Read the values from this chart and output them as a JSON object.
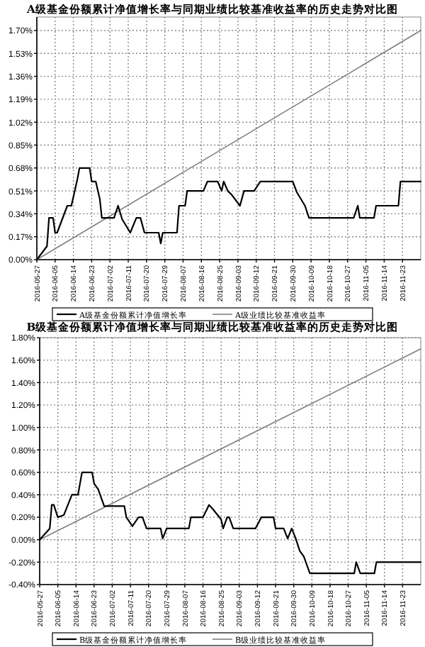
{
  "chart_data": [
    {
      "type": "line",
      "title": "A级基金份额累计净值增长率与同期业绩比较基准收益率的历史走势对比图",
      "legend": "bottom",
      "grid": true,
      "marker": "none",
      "line_style": "solid",
      "xlim": [
        "2016-05-27",
        "2016-12-02"
      ],
      "xticks": [
        "2016-05-27",
        "2016-06-05",
        "2016-06-14",
        "2016-06-23",
        "2016-07-02",
        "2016-07-11",
        "2016-07-20",
        "2016-07-29",
        "2016-08-07",
        "2016-08-16",
        "2016-08-25",
        "2016-09-03",
        "2016-09-12",
        "2016-09-21",
        "2016-09-30",
        "2016-10-09",
        "2016-10-18",
        "2016-10-27",
        "2016-11-05",
        "2016-11-14",
        "2016-11-23"
      ],
      "ylim": [
        0,
        1.8
      ],
      "yticks": [
        {
          "value": 0,
          "label": "0.00%"
        },
        {
          "value": 0.17,
          "label": "0.17%"
        },
        {
          "value": 0.34,
          "label": "0.34%"
        },
        {
          "value": 0.51,
          "label": "0.51%"
        },
        {
          "value": 0.68,
          "label": "0.68%"
        },
        {
          "value": 0.85,
          "label": "0.85%"
        },
        {
          "value": 1.02,
          "label": "1.02%"
        },
        {
          "value": 1.19,
          "label": "1.19%"
        },
        {
          "value": 1.36,
          "label": "1.36%"
        },
        {
          "value": 1.53,
          "label": "1.53%"
        },
        {
          "value": 1.7,
          "label": "1.70%"
        }
      ],
      "series": [
        {
          "name": "A级基金份额累计净值增长率",
          "color": "#000000",
          "x": [
            "2016-05-27",
            "2016-06-01",
            "2016-06-02",
            "2016-06-04",
            "2016-06-05",
            "2016-06-06",
            "2016-06-11",
            "2016-06-13",
            "2016-06-16",
            "2016-06-17",
            "2016-06-22",
            "2016-06-23",
            "2016-06-25",
            "2016-06-27",
            "2016-06-28",
            "2016-07-04",
            "2016-07-06",
            "2016-07-08",
            "2016-07-12",
            "2016-07-15",
            "2016-07-17",
            "2016-07-19",
            "2016-07-26",
            "2016-07-27",
            "2016-07-28",
            "2016-08-04",
            "2016-08-05",
            "2016-08-08",
            "2016-08-09",
            "2016-08-17",
            "2016-08-19",
            "2016-08-24",
            "2016-08-26",
            "2016-08-27",
            "2016-08-29",
            "2016-08-31",
            "2016-09-04",
            "2016-09-06",
            "2016-09-11",
            "2016-09-14",
            "2016-09-30",
            "2016-10-02",
            "2016-10-06",
            "2016-10-08",
            "2016-10-30",
            "2016-11-01",
            "2016-11-02",
            "2016-11-09",
            "2016-11-10",
            "2016-11-21",
            "2016-11-22",
            "2016-12-02"
          ],
          "values": [
            0,
            0.1,
            0.31,
            0.31,
            0.2,
            0.2,
            0.4,
            0.4,
            0.6,
            0.68,
            0.68,
            0.58,
            0.58,
            0.45,
            0.31,
            0.31,
            0.4,
            0.3,
            0.2,
            0.31,
            0.31,
            0.2,
            0.2,
            0.12,
            0.2,
            0.2,
            0.4,
            0.4,
            0.51,
            0.51,
            0.58,
            0.58,
            0.51,
            0.58,
            0.51,
            0.48,
            0.4,
            0.51,
            0.51,
            0.58,
            0.58,
            0.5,
            0.4,
            0.31,
            0.31,
            0.4,
            0.31,
            0.31,
            0.4,
            0.4,
            0.58,
            0.58
          ]
        },
        {
          "name": "A级业绩比较基准收益率",
          "color": "#808080",
          "x": [
            "2016-05-27",
            "2016-12-02"
          ],
          "values": [
            0,
            1.7
          ]
        }
      ]
    },
    {
      "type": "line",
      "title": "B级基金份额累计净值增长率与同期业绩比较基准收益率的历史走势对比图",
      "legend": "bottom",
      "grid": true,
      "marker": "none",
      "line_style": "solid",
      "xlim": [
        "2016-05-27",
        "2016-12-02"
      ],
      "xticks": [
        "2016-05-27",
        "2016-06-05",
        "2016-06-14",
        "2016-06-23",
        "2016-07-02",
        "2016-07-11",
        "2016-07-20",
        "2016-07-29",
        "2016-08-07",
        "2016-08-16",
        "2016-08-25",
        "2016-09-03",
        "2016-09-12",
        "2016-09-21",
        "2016-09-30",
        "2016-10-09",
        "2016-10-18",
        "2016-10-27",
        "2016-11-05",
        "2016-11-14",
        "2016-11-23"
      ],
      "ylim": [
        -0.4,
        1.8
      ],
      "yticks": [
        {
          "value": -0.4,
          "label": "-0.40%"
        },
        {
          "value": -0.2,
          "label": "-0.20%"
        },
        {
          "value": 0,
          "label": "0.00%"
        },
        {
          "value": 0.2,
          "label": "0.20%"
        },
        {
          "value": 0.4,
          "label": "0.40%"
        },
        {
          "value": 0.6,
          "label": "0.60%"
        },
        {
          "value": 0.8,
          "label": "0.80%"
        },
        {
          "value": 1.0,
          "label": "1.00%"
        },
        {
          "value": 1.2,
          "label": "1.20%"
        },
        {
          "value": 1.4,
          "label": "1.40%"
        },
        {
          "value": 1.6,
          "label": "1.60%"
        },
        {
          "value": 1.8,
          "label": "1.80%"
        }
      ],
      "series": [
        {
          "name": "B级基金份额累计净值增长率",
          "color": "#000000",
          "x": [
            "2016-05-27",
            "2016-06-01",
            "2016-06-02",
            "2016-06-03",
            "2016-06-05",
            "2016-06-08",
            "2016-06-12",
            "2016-06-15",
            "2016-06-17",
            "2016-06-22",
            "2016-06-23",
            "2016-06-25",
            "2016-06-28",
            "2016-07-08",
            "2016-07-09",
            "2016-07-12",
            "2016-07-15",
            "2016-07-17",
            "2016-07-19",
            "2016-07-26",
            "2016-07-27",
            "2016-07-29",
            "2016-08-09",
            "2016-08-10",
            "2016-08-16",
            "2016-08-19",
            "2016-08-21",
            "2016-08-25",
            "2016-08-26",
            "2016-08-28",
            "2016-08-29",
            "2016-08-31",
            "2016-09-11",
            "2016-09-14",
            "2016-09-20",
            "2016-09-21",
            "2016-09-25",
            "2016-09-27",
            "2016-09-29",
            "2016-10-01",
            "2016-10-03",
            "2016-10-05",
            "2016-10-08",
            "2016-10-30",
            "2016-10-31",
            "2016-11-02",
            "2016-11-09",
            "2016-11-10",
            "2016-12-02"
          ],
          "values": [
            0,
            0.1,
            0.31,
            0.31,
            0.2,
            0.22,
            0.4,
            0.4,
            0.6,
            0.6,
            0.5,
            0.45,
            0.3,
            0.3,
            0.2,
            0.12,
            0.2,
            0.2,
            0.1,
            0.1,
            0.01,
            0.1,
            0.1,
            0.2,
            0.2,
            0.31,
            0.27,
            0.18,
            0.1,
            0.2,
            0.2,
            0.1,
            0.1,
            0.2,
            0.2,
            0.1,
            0.1,
            0.01,
            0.1,
            0.01,
            -0.1,
            -0.15,
            -0.3,
            -0.3,
            -0.2,
            -0.3,
            -0.3,
            -0.2,
            -0.2
          ]
        },
        {
          "name": "B级业绩比较基准收益率",
          "color": "#808080",
          "x": [
            "2016-05-27",
            "2016-12-02"
          ],
          "values": [
            0,
            1.7
          ]
        }
      ]
    }
  ]
}
